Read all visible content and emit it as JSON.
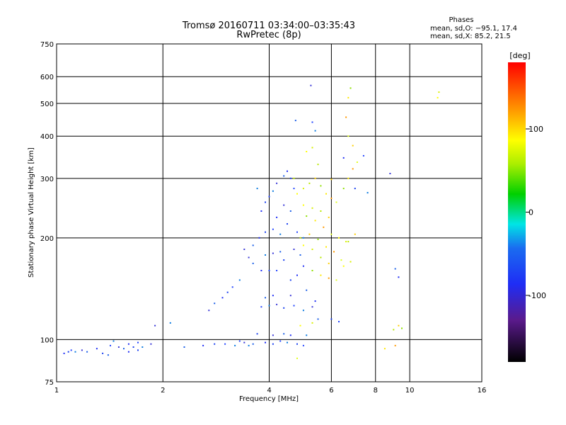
{
  "chart_data": {
    "type": "scatter",
    "title": "Tromsø 20160711 03:34:00–03:35:43",
    "subtitle": "RwPretec (8p)",
    "xlabel": "Frequency [MHz]",
    "ylabel": "Stationary phase Virtual Height [km]",
    "x_scale": "log",
    "y_scale": "log",
    "xlim": [
      1,
      16
    ],
    "ylim": [
      75,
      750
    ],
    "x_ticks": [
      1,
      2,
      4,
      6,
      8,
      10,
      16
    ],
    "x_grid": [
      2,
      4,
      6,
      8,
      10
    ],
    "y_ticks": [
      75,
      100,
      200,
      300,
      400,
      500,
      600,
      750
    ],
    "y_grid": [
      100,
      200,
      300,
      400,
      500,
      600
    ],
    "grid": true,
    "stats": {
      "heading": "Phases",
      "o_line": "mean, sd,O: −95.1, 17.4",
      "x_line": "mean, sd,X: 85.2, 21.5"
    },
    "colorbar": {
      "label": "[deg]",
      "range": [
        -180,
        180
      ],
      "ticks": [
        100,
        0,
        -100
      ],
      "placement": "right"
    },
    "series": [
      {
        "values": [
          [
            1.05,
            91
          ],
          [
            1.08,
            92
          ],
          [
            1.1,
            93
          ],
          [
            1.13,
            92
          ],
          [
            1.18,
            93
          ],
          [
            1.22,
            92
          ],
          [
            1.3,
            94
          ],
          [
            1.35,
            91
          ],
          [
            1.42,
            96
          ],
          [
            1.45,
            99
          ],
          [
            1.5,
            95
          ],
          [
            1.55,
            94
          ],
          [
            1.6,
            97
          ],
          [
            1.65,
            95
          ],
          [
            1.7,
            98
          ],
          [
            1.75,
            95
          ],
          [
            1.85,
            97
          ],
          [
            2.3,
            95
          ],
          [
            2.6,
            96
          ],
          [
            2.8,
            97
          ],
          [
            3.0,
            97
          ],
          [
            3.2,
            96
          ],
          [
            3.4,
            98
          ],
          [
            3.6,
            97
          ],
          [
            3.9,
            98
          ],
          [
            4.1,
            97
          ],
          [
            4.3,
            99
          ],
          [
            4.5,
            98
          ],
          [
            4.1,
            103
          ],
          [
            4.4,
            104
          ],
          [
            4.6,
            103
          ],
          [
            3.7,
            104
          ],
          [
            3.8,
            125
          ],
          [
            4.0,
            126
          ],
          [
            4.2,
            127
          ],
          [
            3.9,
            133
          ],
          [
            4.1,
            135
          ],
          [
            4.4,
            124
          ],
          [
            4.7,
            126
          ],
          [
            5.0,
            122
          ],
          [
            2.7,
            122
          ],
          [
            2.8,
            128
          ],
          [
            2.95,
            133
          ],
          [
            3.05,
            138
          ],
          [
            3.15,
            143
          ],
          [
            3.3,
            150
          ],
          [
            3.5,
            175
          ],
          [
            3.6,
            190
          ],
          [
            3.75,
            200
          ],
          [
            3.9,
            208
          ],
          [
            4.1,
            212
          ],
          [
            4.3,
            205
          ],
          [
            3.4,
            185
          ],
          [
            3.6,
            168
          ],
          [
            3.8,
            160
          ],
          [
            4.0,
            160
          ],
          [
            4.2,
            160
          ],
          [
            3.9,
            178
          ],
          [
            4.1,
            180
          ],
          [
            4.3,
            182
          ],
          [
            3.8,
            240
          ],
          [
            3.9,
            255
          ],
          [
            4.0,
            265
          ],
          [
            4.1,
            275
          ],
          [
            4.2,
            290
          ],
          [
            4.4,
            305
          ],
          [
            4.5,
            315
          ],
          [
            4.6,
            300
          ],
          [
            4.7,
            280
          ],
          [
            3.7,
            280
          ],
          [
            4.4,
            250
          ],
          [
            4.6,
            240
          ],
          [
            4.2,
            230
          ],
          [
            4.5,
            220
          ],
          [
            4.8,
            208
          ],
          [
            5.0,
            200
          ],
          [
            4.7,
            185
          ],
          [
            4.9,
            178
          ],
          [
            5.0,
            165
          ],
          [
            4.6,
            150
          ],
          [
            5.3,
            440
          ],
          [
            5.4,
            415
          ],
          [
            5.25,
            565
          ],
          [
            4.75,
            445
          ],
          [
            6.5,
            345
          ],
          [
            7.0,
            280
          ],
          [
            7.4,
            350
          ],
          [
            7.6,
            272
          ],
          [
            8.8,
            310
          ],
          [
            9.1,
            162
          ],
          [
            9.3,
            153
          ],
          [
            4.8,
            97
          ],
          [
            5.0,
            96
          ],
          [
            5.1,
            103
          ],
          [
            5.3,
            125
          ],
          [
            5.5,
            115
          ],
          [
            5.4,
            130
          ],
          [
            6.0,
            115
          ],
          [
            6.3,
            113
          ],
          [
            2.1,
            112
          ],
          [
            1.9,
            110
          ],
          [
            1.4,
            90
          ],
          [
            1.6,
            92
          ],
          [
            1.7,
            93
          ],
          [
            3.3,
            99
          ],
          [
            3.5,
            96
          ],
          [
            4.6,
            135
          ],
          [
            5.1,
            140
          ],
          [
            4.8,
            155
          ],
          [
            4.4,
            172
          ]
        ]
      },
      {
        "values": [
          [
            4.8,
            270
          ],
          [
            5.0,
            280
          ],
          [
            5.2,
            290
          ],
          [
            5.4,
            300
          ],
          [
            5.6,
            285
          ],
          [
            5.8,
            270
          ],
          [
            6.0,
            262
          ],
          [
            6.2,
            255
          ],
          [
            5.0,
            250
          ],
          [
            5.3,
            245
          ],
          [
            5.6,
            240
          ],
          [
            5.9,
            230
          ],
          [
            5.1,
            232
          ],
          [
            5.4,
            225
          ],
          [
            5.7,
            215
          ],
          [
            6.0,
            205
          ],
          [
            6.3,
            200
          ],
          [
            6.6,
            195
          ],
          [
            4.9,
            200
          ],
          [
            5.2,
            205
          ],
          [
            5.5,
            198
          ],
          [
            5.8,
            188
          ],
          [
            6.1,
            182
          ],
          [
            6.4,
            172
          ],
          [
            5.0,
            190
          ],
          [
            5.3,
            185
          ],
          [
            5.6,
            175
          ],
          [
            5.9,
            168
          ],
          [
            5.3,
            160
          ],
          [
            5.6,
            155
          ],
          [
            5.9,
            152
          ],
          [
            6.2,
            150
          ],
          [
            6.5,
            165
          ],
          [
            6.8,
            170
          ],
          [
            6.7,
            195
          ],
          [
            7.0,
            205
          ],
          [
            6.5,
            280
          ],
          [
            6.7,
            300
          ],
          [
            6.9,
            320
          ],
          [
            7.1,
            335
          ],
          [
            5.1,
            360
          ],
          [
            5.3,
            370
          ],
          [
            5.5,
            330
          ],
          [
            6.9,
            375
          ],
          [
            6.8,
            555
          ],
          [
            6.7,
            520
          ],
          [
            6.6,
            455
          ],
          [
            6.7,
            400
          ],
          [
            12.0,
            520
          ],
          [
            12.1,
            540
          ],
          [
            9.0,
            107
          ],
          [
            9.3,
            110
          ],
          [
            9.5,
            108
          ],
          [
            8.5,
            94
          ],
          [
            9.1,
            96
          ],
          [
            4.8,
            88
          ],
          [
            4.9,
            110
          ],
          [
            5.3,
            112
          ],
          [
            4.7,
            300
          ],
          [
            6.0,
            298
          ]
        ]
      }
    ]
  }
}
